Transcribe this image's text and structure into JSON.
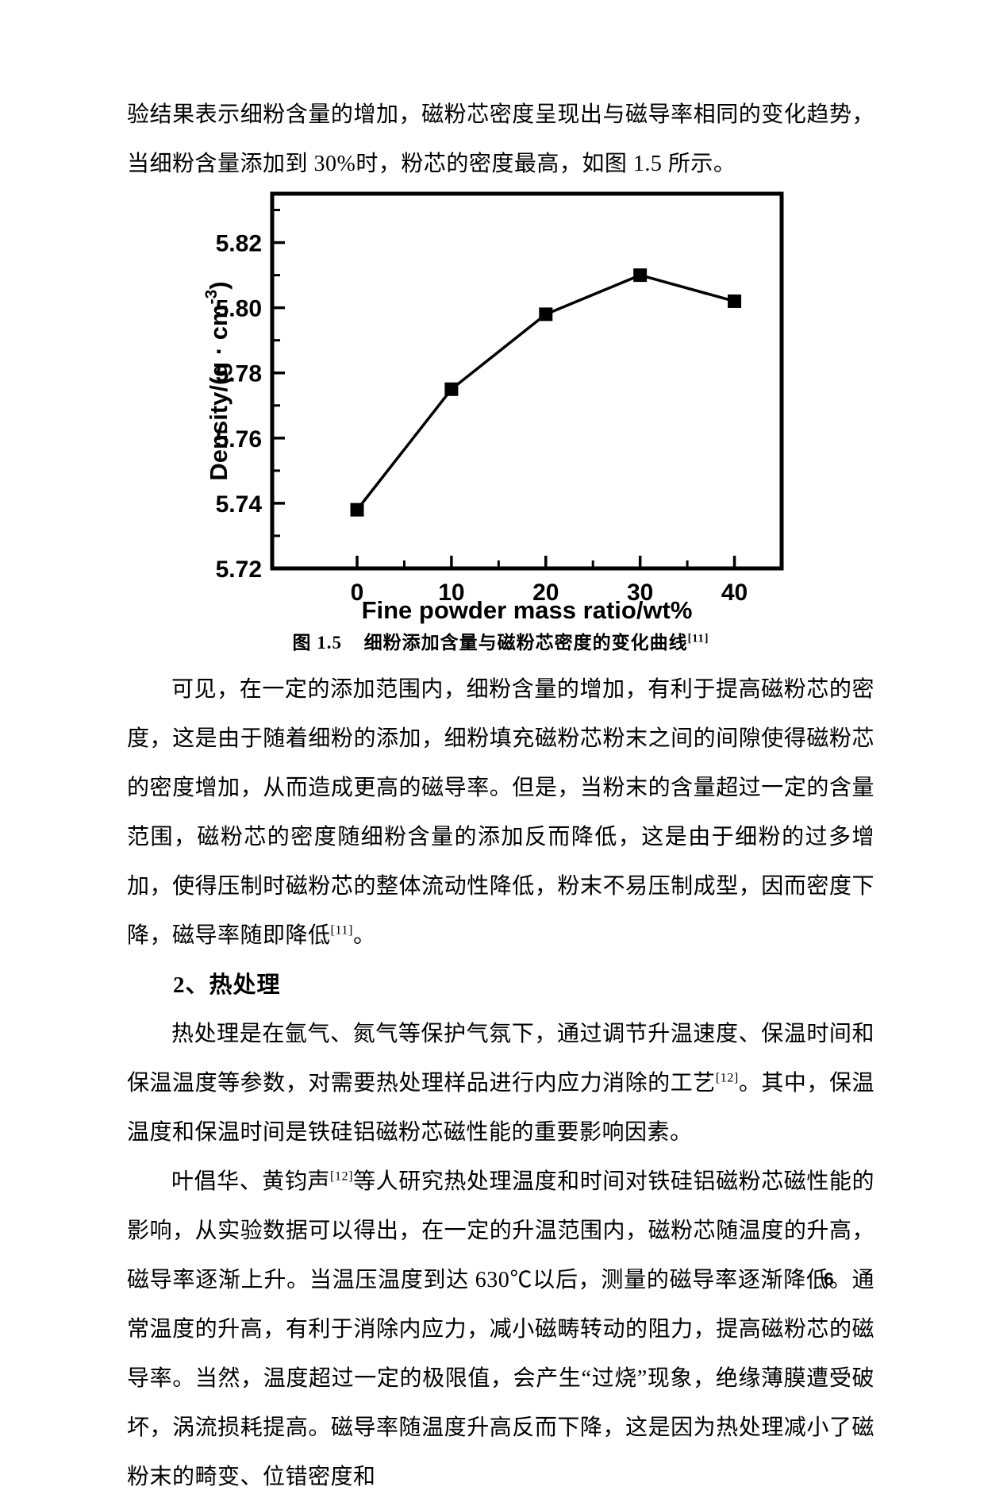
{
  "page": {
    "number": "6"
  },
  "paragraphs": {
    "p1": {
      "t1": "验结果表示细粉含量的增加，磁粉芯密度呈现出与磁导率相同的变化趋势，当细粉含量添加到 30%时，粉芯的密度最高，如图 1.5 所示。"
    },
    "caption": {
      "label": "图 1.5",
      "t1": "细粉添加含量与磁粉芯密度的变化曲线",
      "s1": "[11]"
    },
    "p2": {
      "t1": "可见，在一定的添加范围内，细粉含量的增加，有利于提高磁粉芯的密度，这是由于随着细粉的添加，细粉填充磁粉芯粉末之间的间隙使得磁粉芯的密度增加，从而造成更高的磁导率。但是，当粉末的含量超过一定的含量范围，磁粉芯的密度随细粉含量的添加反而降低，这是由于细粉的过多增加，使得压制时磁粉芯的整体流动性降低，粉末不易压制成型，因而密度下降，磁导率随即降低",
      "s1": "[11]",
      "t2": "。"
    },
    "h2": {
      "label": "2、热处理"
    },
    "p3": {
      "t1": "热处理是在氩气、氮气等保护气氛下，通过调节升温速度、保温时间和保温温度等参数，对需要热处理样品进行内应力消除的工艺",
      "s1": "[12]",
      "t2": "。其中，保温温度和保温时间是铁硅铝磁粉芯磁性能的重要影响因素。"
    },
    "p4": {
      "t1": "叶倡华、黄钧声",
      "s1": "[12]",
      "t2": "等人研究热处理温度和时间对铁硅铝磁粉芯磁性能的影响，从实验数据可以得出，在一定的升温范围内，磁粉芯随温度的升高，磁导率逐渐上升。当温压温度到达 630℃以后，测量的磁导率逐渐降低。通常温度的升高，有利于消除内应力，减小磁畴转动的阻力，提高磁粉芯的磁导率。当然，温度超过一定的极限值，会产生“过烧”现象，绝缘薄膜遭受破坏，涡流损耗提高。磁导率随温度升高反而下降，这是因为热处理减小了磁粉末的畸变、位错密度和"
    }
  },
  "chart_data": {
    "type": "line",
    "title": "",
    "xlabel": "Fine powder mass ratio/wt%",
    "ylabel": {
      "pre": "Density/(g · cm",
      "sup": "-3",
      "post": ")"
    },
    "x": [
      0,
      10,
      20,
      30,
      40
    ],
    "y": [
      5.738,
      5.775,
      5.798,
      5.81,
      5.802
    ],
    "series_name": "Density",
    "xlim": [
      -9,
      45
    ],
    "ylim": [
      5.72,
      5.835
    ],
    "x_major_ticks": {
      "values": [
        0,
        10,
        20,
        30,
        40
      ],
      "labels": [
        "0",
        "10",
        "20",
        "30",
        "40"
      ]
    },
    "x_minor_ticks": [
      5,
      15,
      25,
      35
    ],
    "y_major_ticks": {
      "values": [
        5.72,
        5.74,
        5.76,
        5.78,
        5.8,
        5.82
      ],
      "labels": [
        "5.72",
        "5.74",
        "5.76",
        "5.78",
        "5.80",
        "5.82"
      ]
    },
    "y_minor_ticks": [
      5.73,
      5.75,
      5.77,
      5.79,
      5.81,
      5.83
    ],
    "marker": "square",
    "grid": false,
    "legend": null,
    "colors": {
      "line": "#000000",
      "marker": "#000000",
      "text": "#000000",
      "background": "#ffffff"
    }
  }
}
